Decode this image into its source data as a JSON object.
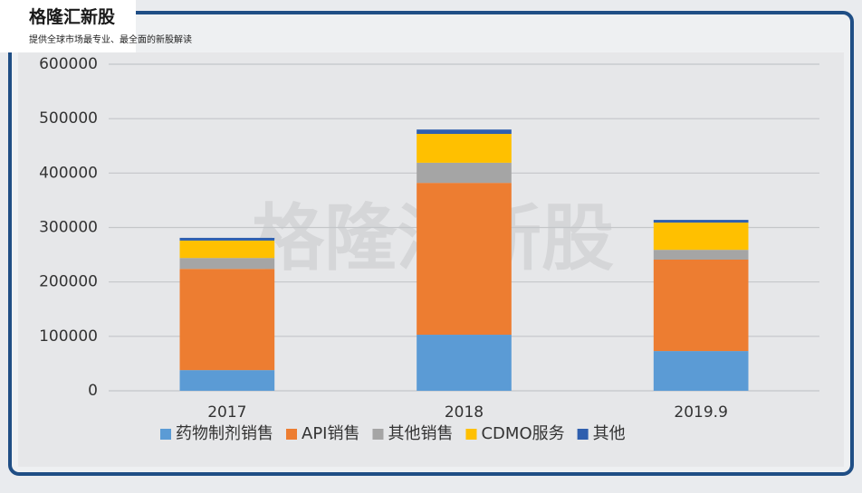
{
  "header": {
    "title": "格隆汇新股",
    "subtitle": "提供全球市场最专业、最全面的新股解读"
  },
  "watermark": "格隆汇新股",
  "chart_data": {
    "type": "stacked-bar",
    "categories": [
      "2017",
      "2018",
      "2019.9"
    ],
    "series": [
      {
        "name": "药物制剂销售",
        "color": "#5b9bd5",
        "values": [
          38000,
          103000,
          73000
        ]
      },
      {
        "name": "API销售",
        "color": "#ed7d31",
        "values": [
          186000,
          279000,
          168000
        ]
      },
      {
        "name": "其他销售",
        "color": "#a5a5a5",
        "values": [
          20000,
          37000,
          18000
        ]
      },
      {
        "name": "CDMO服务",
        "color": "#ffc000",
        "values": [
          32000,
          53000,
          50000
        ]
      },
      {
        "name": "其他",
        "color": "#2f5fae",
        "values": [
          5000,
          8000,
          5000
        ]
      }
    ],
    "ylim": [
      0,
      600000
    ],
    "yticks": [
      0,
      100000,
      200000,
      300000,
      400000,
      500000,
      600000
    ],
    "grid": true,
    "legend": "bottom"
  }
}
